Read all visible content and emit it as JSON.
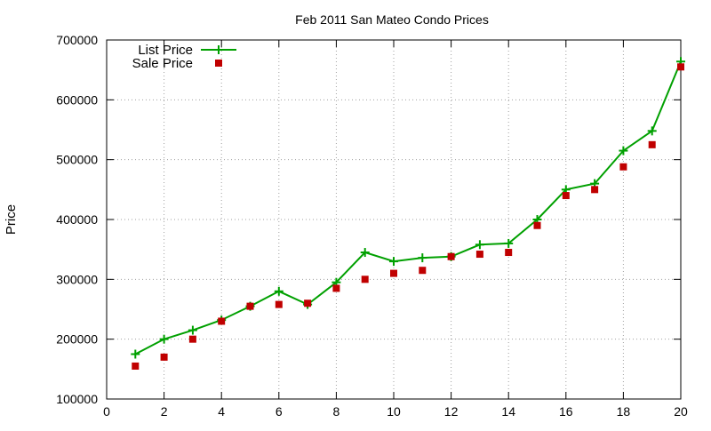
{
  "chart_data": {
    "type": "line",
    "title": "Feb 2011 San Mateo Condo Prices",
    "xlabel": "",
    "ylabel": "Price",
    "xlim": [
      0,
      20
    ],
    "ylim": [
      100000,
      700000
    ],
    "x_ticks": [
      0,
      2,
      4,
      6,
      8,
      10,
      12,
      14,
      16,
      18,
      20
    ],
    "y_ticks": [
      100000,
      200000,
      300000,
      400000,
      500000,
      600000,
      700000
    ],
    "grid": true,
    "legend_position": "top-left",
    "x": [
      1,
      2,
      3,
      4,
      5,
      6,
      7,
      8,
      9,
      10,
      11,
      12,
      13,
      14,
      15,
      16,
      17,
      18,
      19,
      20
    ],
    "series": [
      {
        "name": "List Price",
        "style": "line+cross",
        "color": "#00a000",
        "values": [
          175000,
          200000,
          215000,
          232000,
          255000,
          280000,
          258000,
          295000,
          345000,
          330000,
          336000,
          338000,
          358000,
          360000,
          400000,
          450000,
          460000,
          515000,
          548000,
          664000
        ]
      },
      {
        "name": "Sale Price",
        "style": "square",
        "color": "#c00000",
        "values": [
          155000,
          170000,
          200000,
          230000,
          255000,
          258000,
          260000,
          285000,
          300000,
          310000,
          315000,
          338000,
          342000,
          345000,
          390000,
          440000,
          450000,
          488000,
          525000,
          655000
        ]
      }
    ]
  }
}
